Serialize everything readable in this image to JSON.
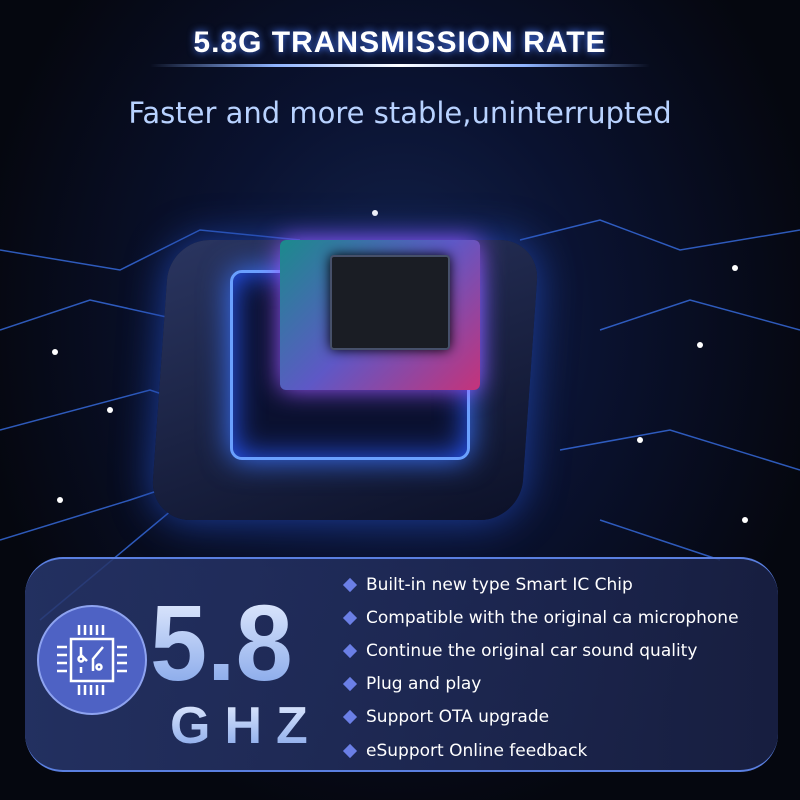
{
  "header": {
    "title": "5.8G TRANSMISSION RATE",
    "subtitle": "Faster and more stable,uninterrupted"
  },
  "badge": {
    "value": "5.8",
    "unit": "GHZ",
    "icon": "chip-icon"
  },
  "features": [
    "Built-in new type Smart IC Chip",
    "Compatible with the original ca microphone",
    "Continue the original car sound quality",
    "Plug and play",
    "Support OTA upgrade",
    "eSupport Online feedback"
  ],
  "colors": {
    "accent": "#4e62c4",
    "bullet": "#6b7fe6",
    "background": "#05070f"
  }
}
